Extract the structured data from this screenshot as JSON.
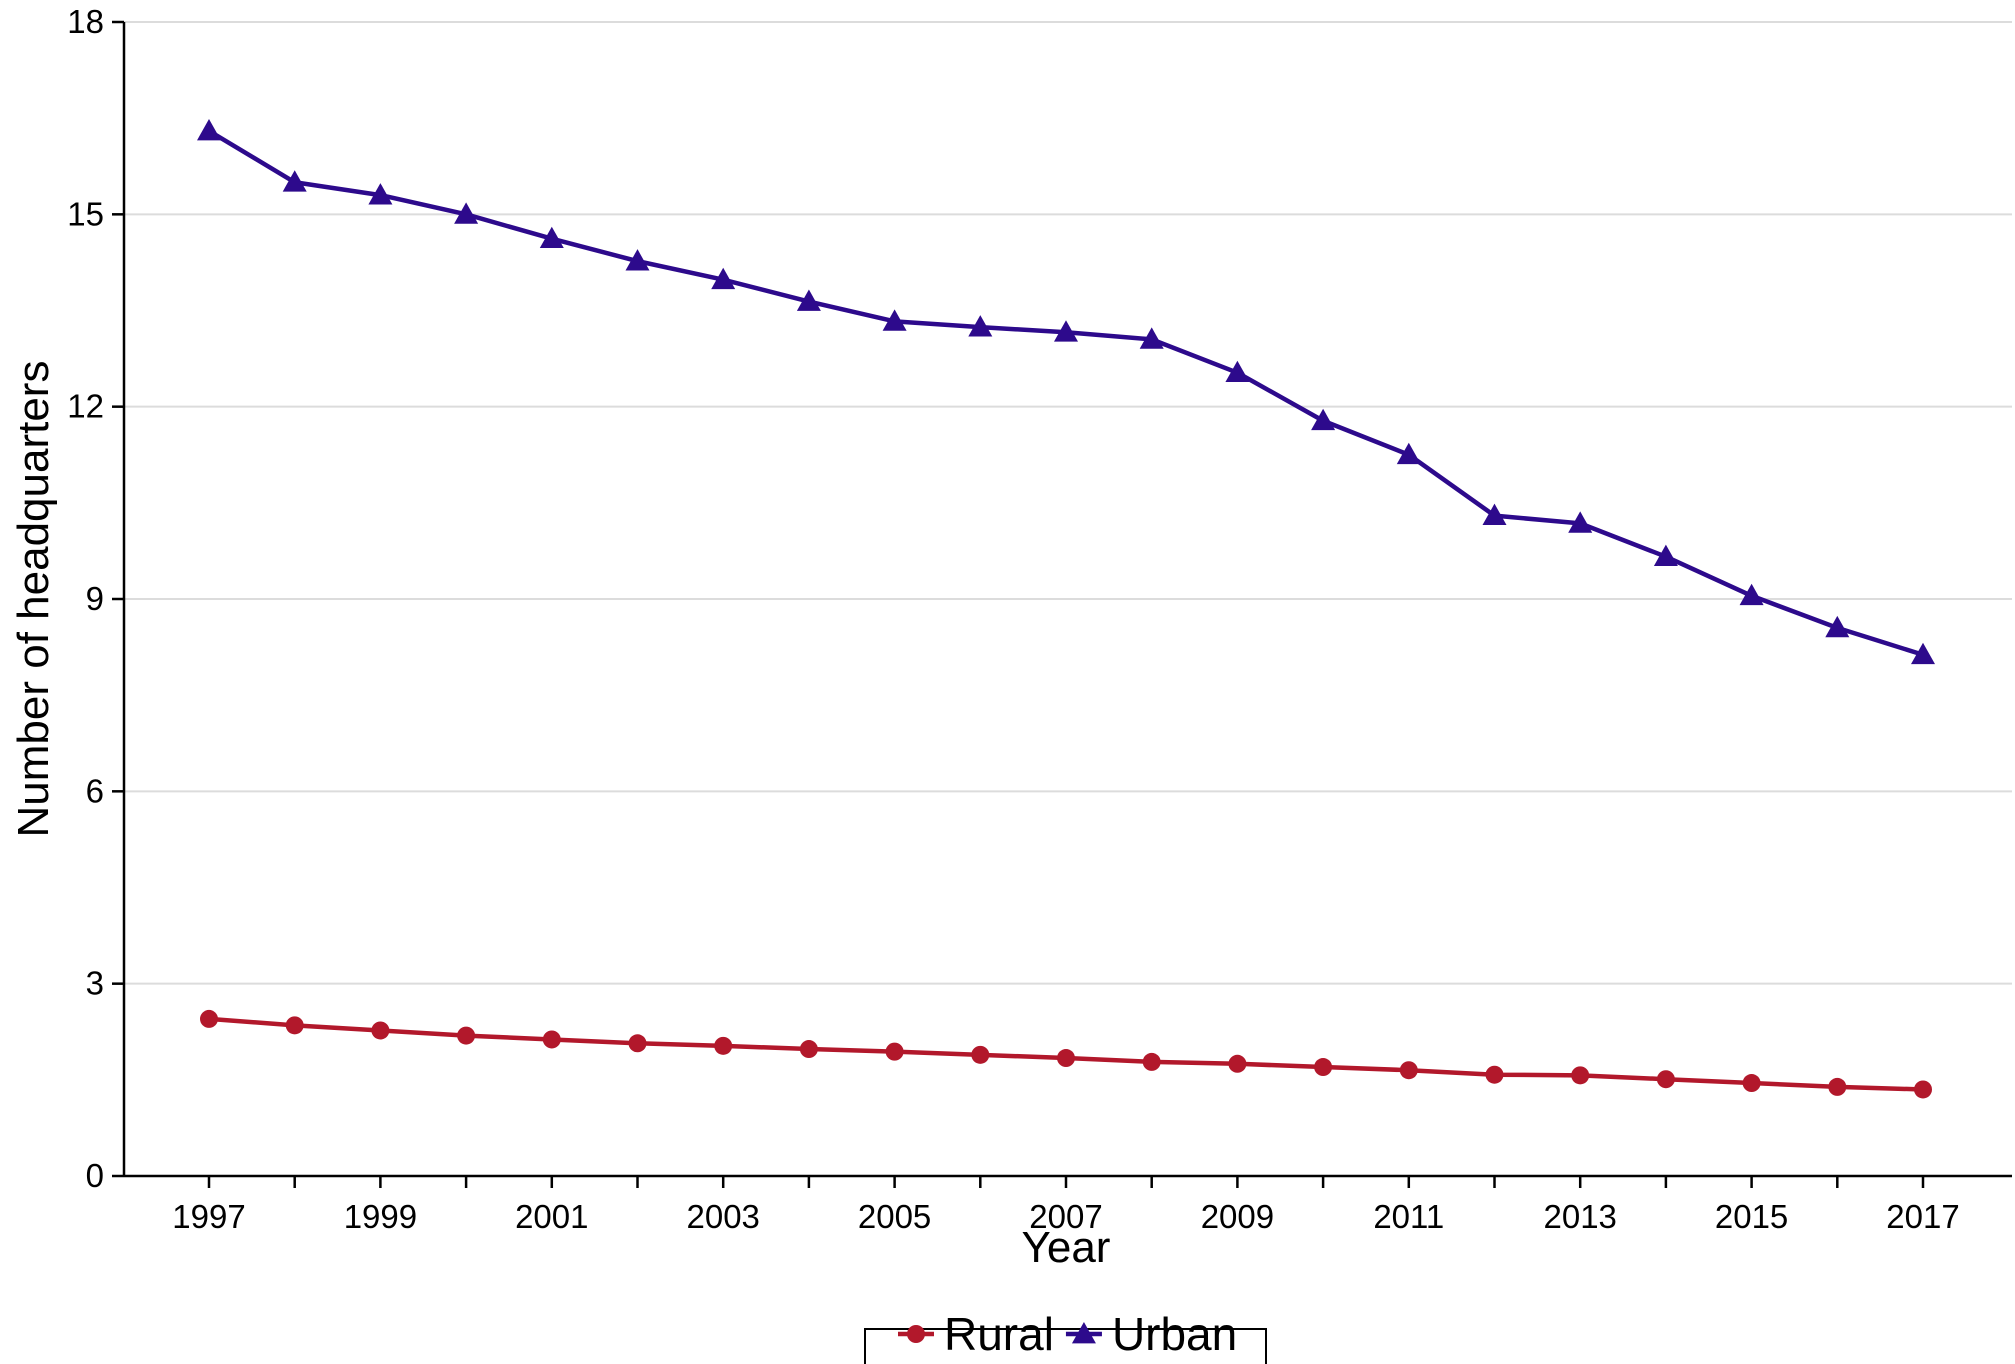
{
  "chart_data": {
    "type": "line",
    "title": "",
    "xlabel": "Year",
    "ylabel": "Number of headquarters",
    "ylim": [
      0,
      18
    ],
    "y_ticks": [
      "0",
      "3",
      "6",
      "9",
      "12",
      "15",
      "18"
    ],
    "x_tick_labels": [
      "1997",
      "1999",
      "2001",
      "2003",
      "2005",
      "2007",
      "2009",
      "2011",
      "2013",
      "2015",
      "2017"
    ],
    "x": [
      1997,
      1998,
      1999,
      2000,
      2001,
      2002,
      2003,
      2004,
      2005,
      2006,
      2007,
      2008,
      2009,
      2010,
      2011,
      2012,
      2013,
      2014,
      2015,
      2016,
      2017
    ],
    "grid": "horizontal",
    "legend_position": "bottom",
    "series": [
      {
        "name": "Rural",
        "color": "#b2182b",
        "marker": "circle",
        "values": [
          2.45,
          2.35,
          2.27,
          2.19,
          2.13,
          2.07,
          2.03,
          1.98,
          1.94,
          1.89,
          1.84,
          1.78,
          1.75,
          1.7,
          1.65,
          1.58,
          1.57,
          1.51,
          1.45,
          1.39,
          1.35
        ]
      },
      {
        "name": "Urban",
        "color": "#2d0a8c",
        "marker": "triangle",
        "values": [
          16.3,
          15.5,
          15.3,
          15.0,
          14.62,
          14.27,
          13.98,
          13.64,
          13.33,
          13.24,
          13.16,
          13.05,
          12.53,
          11.78,
          11.25,
          10.3,
          10.18,
          9.66,
          9.05,
          8.55,
          8.13
        ]
      }
    ]
  }
}
